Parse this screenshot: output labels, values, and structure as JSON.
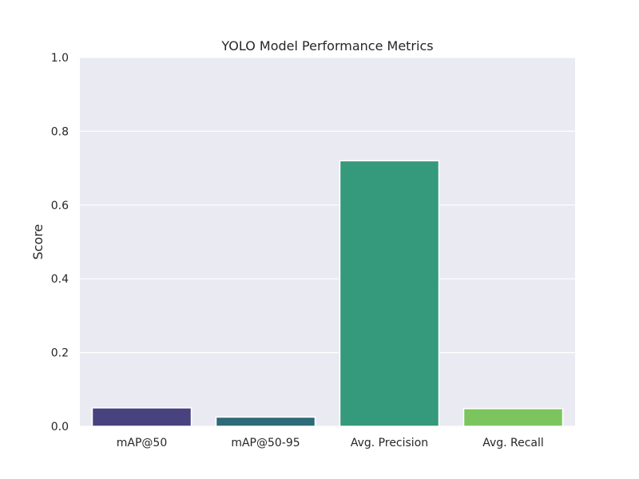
{
  "chart_data": {
    "type": "bar",
    "title": "YOLO Model Performance Metrics",
    "xlabel": "",
    "ylabel": "Score",
    "ylim": [
      0,
      1.0
    ],
    "yticks": [
      "0.0",
      "0.2",
      "0.4",
      "0.6",
      "0.8",
      "1.0"
    ],
    "categories": [
      "mAP@50",
      "mAP@50-95",
      "Avg. Precision",
      "Avg. Recall"
    ],
    "values": [
      0.05,
      0.025,
      0.72,
      0.048
    ],
    "colors": [
      "#48427e",
      "#2e6a77",
      "#35997b",
      "#7cc55e"
    ],
    "background": "#eaeaf2",
    "grid": true
  }
}
